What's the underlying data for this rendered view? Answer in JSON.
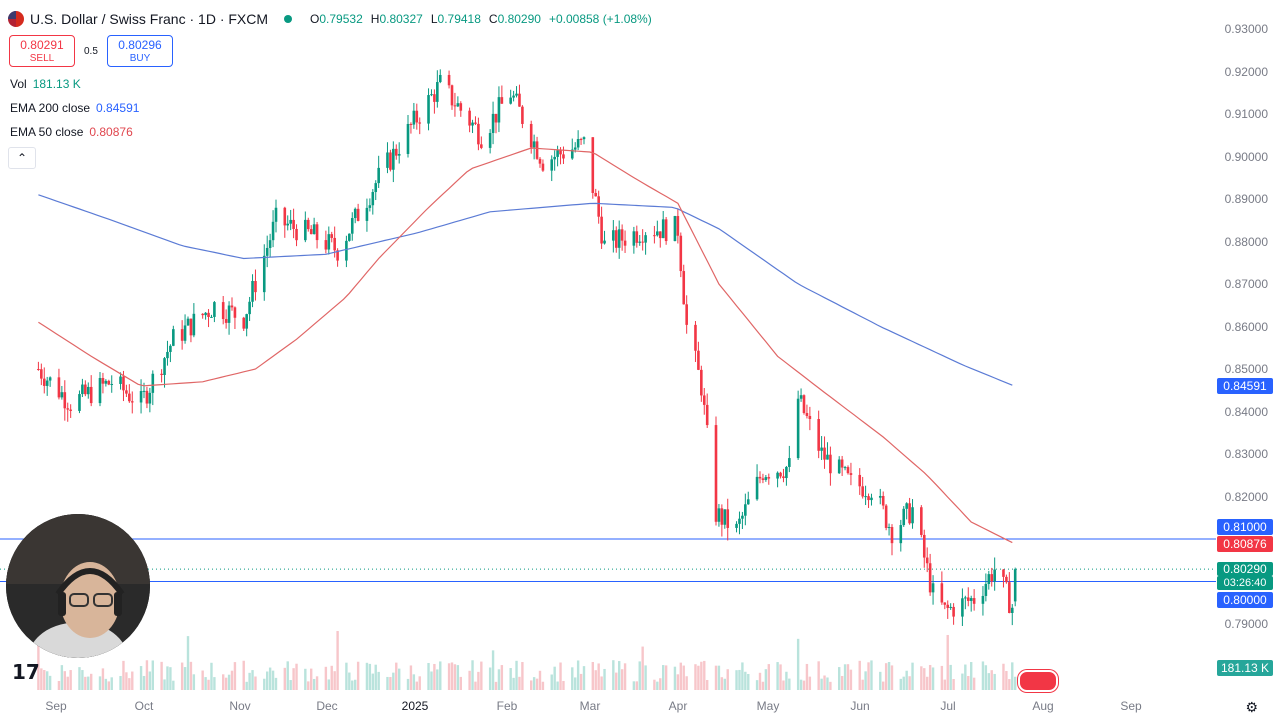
{
  "header": {
    "title": "U.S. Dollar / Swiss Franc · 1D · FXCM",
    "ohlc": [
      {
        "k": "O",
        "v": "0.79532"
      },
      {
        "k": "H",
        "v": "0.80327"
      },
      {
        "k": "L",
        "v": "0.79418"
      },
      {
        "k": "C",
        "v": "0.80290"
      },
      {
        "k": "",
        "v": "+0.00858 (+1.08%)"
      }
    ]
  },
  "trade": {
    "sell_price": "0.80291",
    "sell_label": "SELL",
    "spread": "0.5",
    "buy_price": "0.80296",
    "buy_label": "BUY"
  },
  "legend": {
    "vol_label": "Vol",
    "vol_value": "181.13 K",
    "ema200_label": "EMA 200 close",
    "ema200_value": "0.84591",
    "ema50_label": "EMA 50 close",
    "ema50_value": "0.80876"
  },
  "colors": {
    "up": "#089981",
    "down": "#f23645",
    "ema200": "#5b7bd5",
    "ema50": "#e06666",
    "hline": "#2962ff",
    "text": "#131722",
    "axis": "#787b86"
  },
  "icons": [
    "tradingview-logo-icon",
    "settings-icon",
    "collapse-chevron-icon",
    "us-flag-icon"
  ],
  "chart_data": {
    "type": "candlestick",
    "symbol": "USD/CHF",
    "interval": "1D",
    "ylim": [
      0.785,
      0.935
    ],
    "y_ticks": [
      "0.93000",
      "0.92000",
      "0.91000",
      "0.90000",
      "0.89000",
      "0.88000",
      "0.87000",
      "0.86000",
      "0.85000",
      "0.84000",
      "0.83000",
      "0.82000",
      "0.79000"
    ],
    "x_ticks": [
      "Sep",
      "Oct",
      "Nov",
      "Dec",
      "2025",
      "Feb",
      "Mar",
      "Apr",
      "May",
      "Jun",
      "Jul",
      "Aug",
      "Sep"
    ],
    "close_path": [
      {
        "t": "2024-08-26",
        "c": 0.85
      },
      {
        "t": "2024-09-06",
        "c": 0.842
      },
      {
        "t": "2024-09-20",
        "c": 0.847
      },
      {
        "t": "2024-09-30",
        "c": 0.842
      },
      {
        "t": "2024-10-11",
        "c": 0.857
      },
      {
        "t": "2024-10-25",
        "c": 0.865
      },
      {
        "t": "2024-11-04",
        "c": 0.862
      },
      {
        "t": "2024-11-15",
        "c": 0.885
      },
      {
        "t": "2024-11-29",
        "c": 0.881
      },
      {
        "t": "2024-12-06",
        "c": 0.878
      },
      {
        "t": "2024-12-20",
        "c": 0.895
      },
      {
        "t": "2024-12-31",
        "c": 0.907
      },
      {
        "t": "2025-01-10",
        "c": 0.917
      },
      {
        "t": "2025-01-24",
        "c": 0.905
      },
      {
        "t": "2025-02-03",
        "c": 0.915
      },
      {
        "t": "2025-02-14",
        "c": 0.899
      },
      {
        "t": "2025-02-28",
        "c": 0.903
      },
      {
        "t": "2025-03-07",
        "c": 0.879
      },
      {
        "t": "2025-03-21",
        "c": 0.883
      },
      {
        "t": "2025-04-01",
        "c": 0.883
      },
      {
        "t": "2025-04-04",
        "c": 0.86
      },
      {
        "t": "2025-04-09",
        "c": 0.846
      },
      {
        "t": "2025-04-14",
        "c": 0.816
      },
      {
        "t": "2025-04-21",
        "c": 0.812
      },
      {
        "t": "2025-04-30",
        "c": 0.826
      },
      {
        "t": "2025-05-09",
        "c": 0.827
      },
      {
        "t": "2025-05-12",
        "c": 0.843
      },
      {
        "t": "2025-05-20",
        "c": 0.83
      },
      {
        "t": "2025-05-30",
        "c": 0.823
      },
      {
        "t": "2025-06-06",
        "c": 0.822
      },
      {
        "t": "2025-06-13",
        "c": 0.812
      },
      {
        "t": "2025-06-20",
        "c": 0.817
      },
      {
        "t": "2025-06-27",
        "c": 0.797
      },
      {
        "t": "2025-07-01",
        "c": 0.793
      },
      {
        "t": "2025-07-11",
        "c": 0.796
      },
      {
        "t": "2025-07-18",
        "c": 0.803
      },
      {
        "t": "2025-07-24",
        "c": 0.794
      },
      {
        "t": "2025-07-25",
        "c": 0.8029
      }
    ],
    "ema50": [
      {
        "t": "2024-08-26",
        "v": 0.861
      },
      {
        "t": "2024-09-13",
        "v": 0.853
      },
      {
        "t": "2024-09-30",
        "v": 0.846
      },
      {
        "t": "2024-10-21",
        "v": 0.847
      },
      {
        "t": "2024-11-08",
        "v": 0.85
      },
      {
        "t": "2024-11-22",
        "v": 0.857
      },
      {
        "t": "2024-12-09",
        "v": 0.867
      },
      {
        "t": "2024-12-20",
        "v": 0.876
      },
      {
        "t": "2025-01-06",
        "v": 0.888
      },
      {
        "t": "2025-01-20",
        "v": 0.897
      },
      {
        "t": "2025-02-10",
        "v": 0.902
      },
      {
        "t": "2025-03-03",
        "v": 0.901
      },
      {
        "t": "2025-03-17",
        "v": 0.895
      },
      {
        "t": "2025-04-01",
        "v": 0.889
      },
      {
        "t": "2025-04-15",
        "v": 0.87
      },
      {
        "t": "2025-05-05",
        "v": 0.853
      },
      {
        "t": "2025-05-20",
        "v": 0.845
      },
      {
        "t": "2025-06-10",
        "v": 0.834
      },
      {
        "t": "2025-06-25",
        "v": 0.825
      },
      {
        "t": "2025-07-10",
        "v": 0.814
      },
      {
        "t": "2025-07-25",
        "v": 0.8088
      }
    ],
    "ema200": [
      {
        "t": "2024-08-26",
        "v": 0.891
      },
      {
        "t": "2024-09-20",
        "v": 0.885
      },
      {
        "t": "2024-10-14",
        "v": 0.879
      },
      {
        "t": "2024-11-04",
        "v": 0.876
      },
      {
        "t": "2024-12-02",
        "v": 0.877
      },
      {
        "t": "2025-01-02",
        "v": 0.882
      },
      {
        "t": "2025-01-27",
        "v": 0.887
      },
      {
        "t": "2025-03-03",
        "v": 0.889
      },
      {
        "t": "2025-03-31",
        "v": 0.888
      },
      {
        "t": "2025-04-15",
        "v": 0.883
      },
      {
        "t": "2025-05-12",
        "v": 0.87
      },
      {
        "t": "2025-06-09",
        "v": 0.86
      },
      {
        "t": "2025-07-07",
        "v": 0.851
      },
      {
        "t": "2025-07-25",
        "v": 0.8459
      }
    ],
    "horizontal_lines": [
      0.81,
      0.8
    ],
    "current_price": "0.80290",
    "countdown": "03:26:40",
    "price_labels": {
      "ema200": "0.84591",
      "hline_high": "0.81000",
      "ema50": "0.80876",
      "hline_low": "0.80000",
      "volume": "181.13 K"
    },
    "volume_last": "181.13 K"
  }
}
